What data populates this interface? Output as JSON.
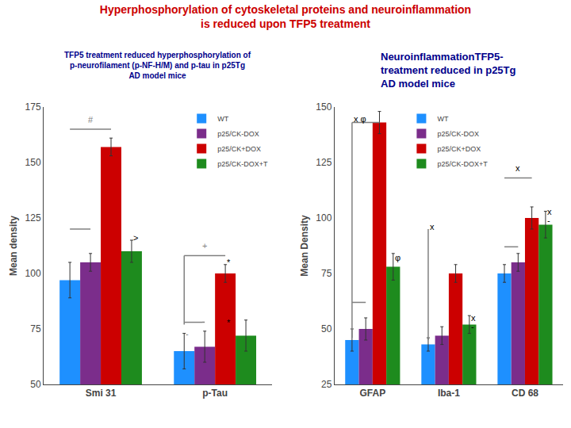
{
  "title": "Hyperphosphorylation of cytoskeletal proteins and neuroinflammation\nis reduced upon TFP5 treatment",
  "title_color": "#CC0000",
  "chart_data": [
    {
      "type": "bar",
      "subtitle": "TFP5 treatment reduced hyperphosphorylation of\np-neurofilament (p-NF-H/M) and p-tau in p25Tg\nAD model mice",
      "subtitle_color": "#00008B",
      "categories": [
        "Smi 31",
        "p-Tau"
      ],
      "series": [
        {
          "name": "WT",
          "color": "#1E90FF",
          "values": [
            97,
            65
          ],
          "errors": [
            8,
            8
          ]
        },
        {
          "name": "p25/CK-DOX",
          "color": "#7B2D8B",
          "values": [
            105,
            67
          ],
          "errors": [
            4,
            7
          ]
        },
        {
          "name": "p25/CK+DOX",
          "color": "#CC0000",
          "values": [
            157,
            100
          ],
          "errors": [
            4,
            4
          ]
        },
        {
          "name": "p25/CK-DOX+T",
          "color": "#1E8B1E",
          "values": [
            110,
            72
          ],
          "errors": [
            5,
            7
          ]
        }
      ],
      "ylabel": "Mean density",
      "ylim": [
        50,
        175
      ],
      "yticks": [
        50,
        75,
        100,
        125,
        150,
        175
      ],
      "grid": false,
      "legend": "top right",
      "lines": [
        {
          "category": "Smi 31",
          "series": [
            "WT",
            "p25/CK+DOX"
          ],
          "y": 165,
          "color": "gray"
        },
        {
          "category": "Smi 31",
          "series": [
            "WT",
            "p25/CK-DOX"
          ],
          "y": 120,
          "color": "gray"
        },
        {
          "category": "p-Tau",
          "series": [
            "WT"
          ],
          "y": [
            77,
            108
          ],
          "color": "gray"
        },
        {
          "category": "p-Tau",
          "series": [
            "WT",
            "p25/CK+DOX"
          ],
          "y": 108,
          "color": "gray"
        },
        {
          "category": "p-Tau",
          "series": [
            "WT",
            "p25/CK-DOX"
          ],
          "y": 78,
          "color": "gray"
        }
      ],
      "annotations": [
        {
          "text": "#",
          "category": "Smi 31",
          "series": [
            "WT",
            "p25/CK+DOX"
          ],
          "y": 166.5,
          "color": "gray"
        },
        {
          "text": ">",
          "category": "Smi 31",
          "series": [
            "p25/CK-DOX+T"
          ],
          "y": 116,
          "color": "black"
        },
        {
          "text": "+",
          "category": "p-Tau",
          "series": [
            "WT",
            "p25/CK+DOX"
          ],
          "y": 109.5,
          "color": "gray"
        },
        {
          "text": "-",
          "category": "p-Tau",
          "series": [
            "WT"
          ],
          "y": 73,
          "color": "gray"
        },
        {
          "text": "*",
          "category": "p-Tau",
          "series": [
            "p25/CK+DOX"
          ],
          "y": 105,
          "color": "black"
        },
        {
          "text": "*",
          "category": "p-Tau",
          "series": [
            "p25/CK+DOX"
          ],
          "y": 78,
          "color": "black"
        }
      ]
    },
    {
      "type": "bar",
      "subtitle": "NeuroinflammationTFP5-\ntreatment reduced in p25Tg\nAD model mice",
      "subtitle_color": "#00008B",
      "categories": [
        "GFAP",
        "Iba-1",
        "CD 68"
      ],
      "series": [
        {
          "name": "WT",
          "color": "#1E90FF",
          "values": [
            45,
            43,
            75
          ],
          "errors": [
            5,
            3,
            4
          ]
        },
        {
          "name": "p25/CK-DOX",
          "color": "#7B2D8B",
          "values": [
            50,
            47,
            80
          ],
          "errors": [
            5,
            4,
            4
          ]
        },
        {
          "name": "p25/CK+DOX",
          "color": "#CC0000",
          "values": [
            143,
            75,
            100
          ],
          "errors": [
            5,
            4,
            5
          ]
        },
        {
          "name": "p25/CK-DOX+T",
          "color": "#1E8B1E",
          "values": [
            78,
            52,
            97
          ],
          "errors": [
            6,
            4,
            6
          ]
        }
      ],
      "ylabel": "Mean Density",
      "ylim": [
        25,
        150
      ],
      "yticks": [
        25,
        50,
        75,
        100,
        125,
        150
      ],
      "grid": false,
      "legend": "top",
      "lines": [
        {
          "category": "GFAP",
          "series": [
            "WT"
          ],
          "y": [
            46,
            143
          ],
          "color": "gray"
        },
        {
          "category": "GFAP",
          "series": [
            "WT",
            "p25/CK+DOX"
          ],
          "y": 143,
          "color": "gray"
        },
        {
          "category": "GFAP",
          "series": [
            "WT",
            "p25/CK-DOX"
          ],
          "y": 62,
          "color": "gray"
        },
        {
          "category": "Iba-1",
          "series": [
            "WT"
          ],
          "y": [
            45,
            95
          ],
          "color": "gray"
        },
        {
          "category": "CD 68",
          "series": [
            "WT",
            "p25/CK+DOX"
          ],
          "y": 118,
          "color": "gray"
        },
        {
          "category": "CD 68",
          "series": [
            "WT",
            "p25/CK-DOX"
          ],
          "y": 87,
          "color": "gray"
        }
      ],
      "annotations": [
        {
          "text": "x φ",
          "category": "GFAP",
          "series": [
            "WT"
          ],
          "y": 144.5,
          "color": "black"
        },
        {
          "text": "φ",
          "category": "GFAP",
          "series": [
            "p25/CK-DOX+T"
          ],
          "y": 82,
          "color": "black"
        },
        {
          "text": "x",
          "category": "Iba-1",
          "series": [
            "WT"
          ],
          "y": 96,
          "color": "black"
        },
        {
          "text": "x",
          "category": "Iba-1",
          "series": [
            "p25/CK-DOX+T"
          ],
          "y": 55,
          "color": "black"
        },
        {
          "text": "-",
          "category": "Iba-1",
          "series": [
            "p25/CK-DOX+T"
          ],
          "y": 51,
          "color": "black"
        },
        {
          "text": "x",
          "category": "CD 68",
          "series": [
            "WT",
            "p25/CK+DOX"
          ],
          "y": 119.5,
          "color": "black"
        },
        {
          "text": "x",
          "category": "CD 68",
          "series": [
            "p25/CK-DOX+T"
          ],
          "y": 103,
          "color": "black"
        },
        {
          "text": "-",
          "category": "CD 68",
          "series": [
            "p25/CK-DOX+T"
          ],
          "y": 99,
          "color": "black"
        }
      ]
    }
  ]
}
